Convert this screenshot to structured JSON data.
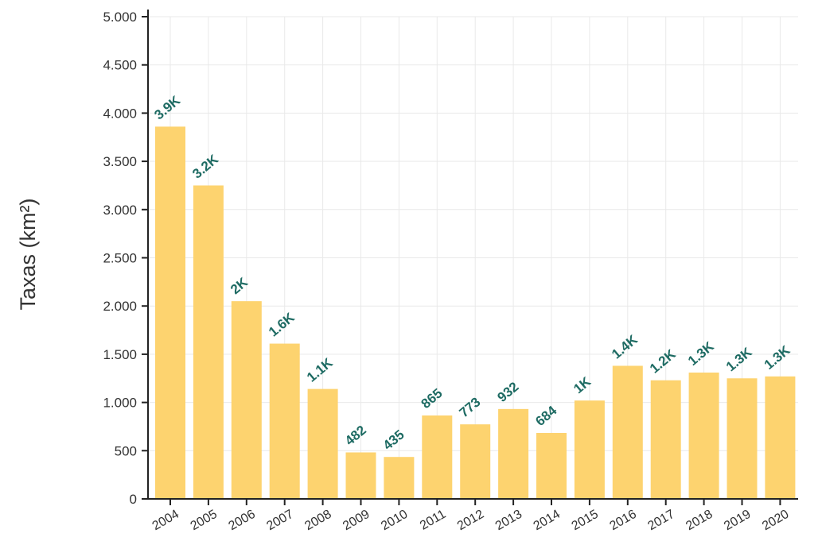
{
  "chart_data": {
    "type": "bar",
    "ylabel": "Taxas (km²)",
    "xlabel": "",
    "categories": [
      "2004",
      "2005",
      "2006",
      "2007",
      "2008",
      "2009",
      "2010",
      "2011",
      "2012",
      "2013",
      "2014",
      "2015",
      "2016",
      "2017",
      "2018",
      "2019",
      "2020"
    ],
    "values": [
      3860,
      3250,
      2050,
      1610,
      1140,
      482,
      435,
      865,
      773,
      932,
      684,
      1020,
      1380,
      1230,
      1310,
      1250,
      1270
    ],
    "data_labels": [
      "3.9K",
      "3.2K",
      "2K",
      "1.6K",
      "1.1K",
      "482",
      "435",
      "865",
      "773",
      "932",
      "684",
      "1K",
      "1.4K",
      "1.2K",
      "1.3K",
      "1.3K",
      "1.3K"
    ],
    "y_ticks": [
      0,
      500,
      1000,
      1500,
      2000,
      2500,
      3000,
      3500,
      4000,
      4500,
      5000
    ],
    "y_tick_labels": [
      "0",
      "500",
      "1.000",
      "1.500",
      "2.000",
      "2.500",
      "3.000",
      "3.500",
      "4.000",
      "4.500",
      "5.000"
    ],
    "ylim": [
      0,
      5000
    ],
    "grid": true,
    "colors": {
      "bar": "#fdd36f",
      "label": "#1e6b63",
      "grid": "#e9e9e9"
    }
  }
}
